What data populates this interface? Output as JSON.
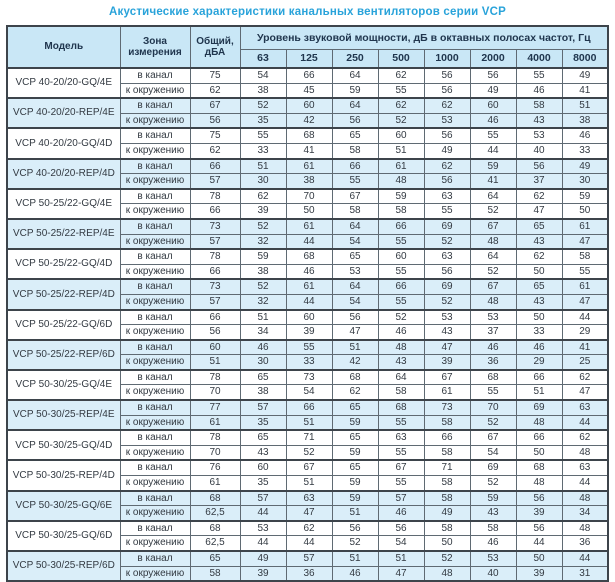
{
  "title": "Акустические характеристики канальных вентиляторов  серии VCP",
  "columns": {
    "model": "Модель",
    "zone": "Зона измерения",
    "total": "Общий, дБА",
    "band_header": "Уровень звуковой мощности, дБ в октавных полосах частот, Гц",
    "frequencies": [
      "63",
      "125",
      "250",
      "500",
      "1000",
      "2000",
      "4000",
      "8000"
    ]
  },
  "zone_labels": {
    "duct": "в канал",
    "env": "к окружению"
  },
  "colors": {
    "title_accent": "#29a3da",
    "header_bg": "#c9e7f6",
    "shaded_row_bg": "#daeef9",
    "border": "#3d444b"
  },
  "rows": [
    {
      "model": "VCP 40-20/20-GQ/4E",
      "shaded": false,
      "duct": [
        "75",
        "54",
        "66",
        "64",
        "62",
        "56",
        "56",
        "55",
        "49"
      ],
      "env": [
        "62",
        "38",
        "45",
        "59",
        "55",
        "56",
        "49",
        "46",
        "41"
      ]
    },
    {
      "model": "VCP 40-20/20-REP/4E",
      "shaded": true,
      "duct": [
        "67",
        "52",
        "60",
        "64",
        "62",
        "62",
        "60",
        "58",
        "51"
      ],
      "env": [
        "56",
        "35",
        "42",
        "56",
        "52",
        "53",
        "46",
        "43",
        "38"
      ]
    },
    {
      "model": "VCP 40-20/20-GQ/4D",
      "shaded": false,
      "duct": [
        "75",
        "55",
        "68",
        "65",
        "60",
        "56",
        "55",
        "53",
        "46"
      ],
      "env": [
        "62",
        "33",
        "41",
        "58",
        "51",
        "49",
        "44",
        "40",
        "33"
      ]
    },
    {
      "model": "VCP 40-20/20-REP/4D",
      "shaded": true,
      "duct": [
        "66",
        "51",
        "61",
        "66",
        "61",
        "62",
        "59",
        "56",
        "49"
      ],
      "env": [
        "57",
        "30",
        "38",
        "55",
        "48",
        "56",
        "41",
        "37",
        "30"
      ]
    },
    {
      "model": "VCP 50-25/22-GQ/4E",
      "shaded": false,
      "duct": [
        "78",
        "62",
        "70",
        "67",
        "59",
        "63",
        "64",
        "62",
        "59"
      ],
      "env": [
        "66",
        "39",
        "50",
        "58",
        "58",
        "55",
        "52",
        "47",
        "50"
      ]
    },
    {
      "model": "VCP 50-25/22-REP/4E",
      "shaded": true,
      "duct": [
        "73",
        "52",
        "61",
        "64",
        "66",
        "69",
        "67",
        "65",
        "61"
      ],
      "env": [
        "57",
        "32",
        "44",
        "54",
        "55",
        "52",
        "48",
        "43",
        "47"
      ]
    },
    {
      "model": "VCP 50-25/22-GQ/4D",
      "shaded": false,
      "duct": [
        "78",
        "59",
        "68",
        "65",
        "60",
        "63",
        "64",
        "62",
        "58"
      ],
      "env": [
        "66",
        "38",
        "46",
        "53",
        "55",
        "56",
        "52",
        "50",
        "55"
      ]
    },
    {
      "model": "VCP 50-25/22-REP/4D",
      "shaded": true,
      "duct": [
        "73",
        "52",
        "61",
        "64",
        "66",
        "69",
        "67",
        "65",
        "61"
      ],
      "env": [
        "57",
        "32",
        "44",
        "54",
        "55",
        "52",
        "48",
        "43",
        "47"
      ]
    },
    {
      "model": "VCP 50-25/22-GQ/6D",
      "shaded": false,
      "duct": [
        "66",
        "51",
        "60",
        "56",
        "52",
        "53",
        "53",
        "50",
        "44"
      ],
      "env": [
        "56",
        "34",
        "39",
        "47",
        "46",
        "43",
        "37",
        "33",
        "29"
      ]
    },
    {
      "model": "VCP 50-25/22-REP/6D",
      "shaded": true,
      "duct": [
        "60",
        "46",
        "55",
        "51",
        "48",
        "47",
        "46",
        "46",
        "41"
      ],
      "env": [
        "51",
        "30",
        "33",
        "42",
        "43",
        "39",
        "36",
        "29",
        "25"
      ]
    },
    {
      "model": "VCP 50-30/25-GQ/4E",
      "shaded": false,
      "duct": [
        "78",
        "65",
        "73",
        "68",
        "64",
        "67",
        "68",
        "66",
        "62"
      ],
      "env": [
        "70",
        "38",
        "54",
        "62",
        "58",
        "61",
        "55",
        "51",
        "47"
      ]
    },
    {
      "model": "VCP 50-30/25-REP/4E",
      "shaded": true,
      "duct": [
        "77",
        "57",
        "66",
        "65",
        "68",
        "73",
        "70",
        "69",
        "63"
      ],
      "env": [
        "61",
        "35",
        "51",
        "59",
        "55",
        "58",
        "52",
        "48",
        "44"
      ]
    },
    {
      "model": "VCP 50-30/25-GQ/4D",
      "shaded": false,
      "duct": [
        "78",
        "65",
        "71",
        "65",
        "63",
        "66",
        "67",
        "66",
        "62"
      ],
      "env": [
        "70",
        "43",
        "52",
        "59",
        "55",
        "58",
        "54",
        "50",
        "48"
      ]
    },
    {
      "model": "VCP 50-30/25-REP/4D",
      "shaded": false,
      "duct": [
        "76",
        "60",
        "67",
        "65",
        "67",
        "71",
        "69",
        "68",
        "63"
      ],
      "env": [
        "61",
        "35",
        "51",
        "59",
        "55",
        "58",
        "52",
        "48",
        "44"
      ]
    },
    {
      "model": "VCP 50-30/25-GQ/6E",
      "shaded": true,
      "duct": [
        "68",
        "57",
        "63",
        "59",
        "57",
        "58",
        "59",
        "56",
        "48"
      ],
      "env": [
        "62,5",
        "44",
        "47",
        "51",
        "46",
        "49",
        "43",
        "39",
        "34"
      ]
    },
    {
      "model": "VCP 50-30/25-GQ/6D",
      "shaded": false,
      "duct": [
        "68",
        "53",
        "62",
        "56",
        "56",
        "58",
        "58",
        "56",
        "48"
      ],
      "env": [
        "62,5",
        "44",
        "44",
        "52",
        "54",
        "50",
        "46",
        "44",
        "36"
      ]
    },
    {
      "model": "VCP 50-30/25-REP/6D",
      "shaded": true,
      "duct": [
        "65",
        "49",
        "57",
        "51",
        "51",
        "52",
        "53",
        "50",
        "44"
      ],
      "env": [
        "58",
        "39",
        "36",
        "46",
        "47",
        "48",
        "40",
        "39",
        "31"
      ]
    }
  ]
}
